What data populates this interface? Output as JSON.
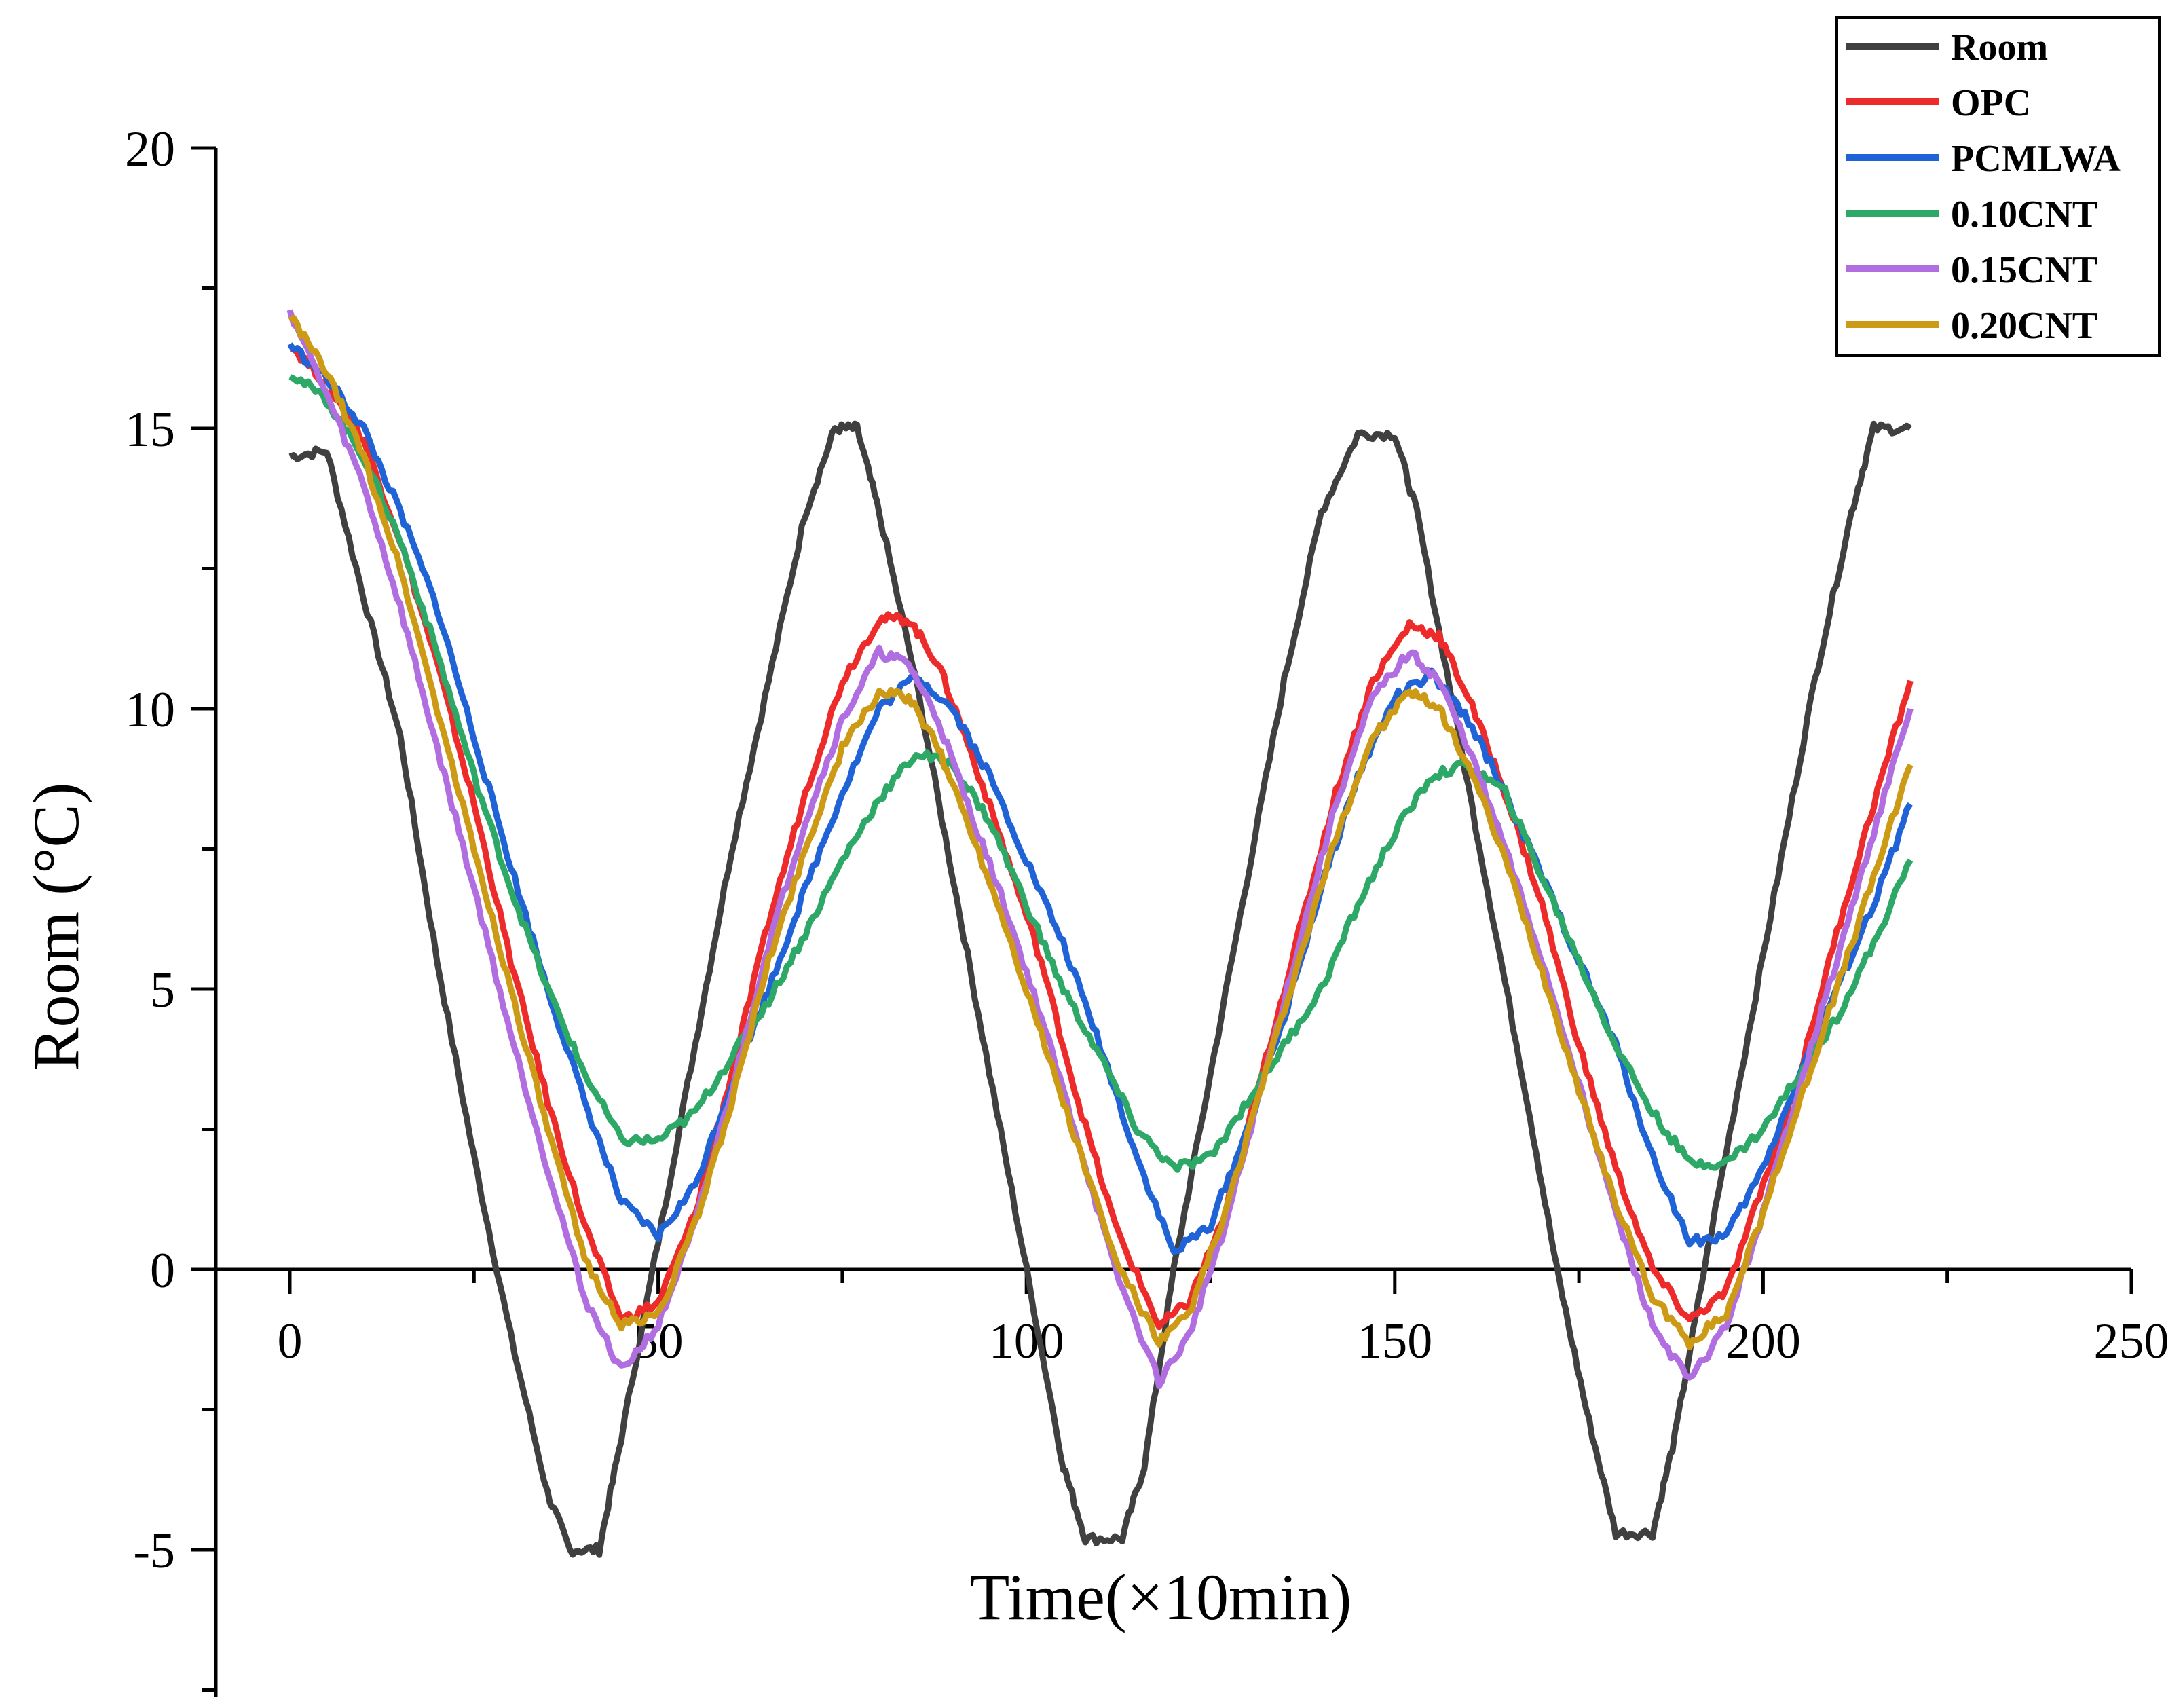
{
  "chart_data": {
    "type": "line",
    "title": "",
    "xlabel": "Time(×10min)",
    "ylabel": "Room (°C)",
    "xlim": [
      -10,
      250
    ],
    "ylim": [
      -7.5,
      20
    ],
    "x_ticks": [
      0,
      50,
      100,
      150,
      200,
      250
    ],
    "y_ticks": [
      -5,
      0,
      5,
      10,
      15,
      20
    ],
    "legend_position": "top-right",
    "grid": false,
    "series": [
      {
        "name": "Room",
        "color": "#404040",
        "points": [
          [
            0,
            14.5
          ],
          [
            5,
            14.6
          ],
          [
            10,
            12.0
          ],
          [
            15,
            9.5
          ],
          [
            20,
            5.5
          ],
          [
            25,
            2.0
          ],
          [
            30,
            -1.2
          ],
          [
            35,
            -4.0
          ],
          [
            38,
            -5.0
          ],
          [
            42,
            -5.0
          ],
          [
            45,
            -3.0
          ],
          [
            50,
            0.5
          ],
          [
            55,
            4.0
          ],
          [
            60,
            7.5
          ],
          [
            65,
            10.5
          ],
          [
            70,
            13.5
          ],
          [
            74,
            15.0
          ],
          [
            77,
            15.0
          ],
          [
            80,
            13.5
          ],
          [
            85,
            10.5
          ],
          [
            90,
            7.0
          ],
          [
            95,
            3.5
          ],
          [
            100,
            0.0
          ],
          [
            105,
            -3.5
          ],
          [
            108,
            -4.8
          ],
          [
            113,
            -4.8
          ],
          [
            116,
            -3.5
          ],
          [
            120,
            0.0
          ],
          [
            125,
            3.5
          ],
          [
            130,
            7.0
          ],
          [
            135,
            10.5
          ],
          [
            140,
            13.5
          ],
          [
            145,
            14.9
          ],
          [
            150,
            14.9
          ],
          [
            153,
            13.5
          ],
          [
            158,
            10.0
          ],
          [
            163,
            6.5
          ],
          [
            168,
            3.0
          ],
          [
            172,
            0.0
          ],
          [
            176,
            -2.5
          ],
          [
            180,
            -4.7
          ],
          [
            185,
            -4.7
          ],
          [
            188,
            -3.0
          ],
          [
            192,
            0.0
          ],
          [
            197,
            3.5
          ],
          [
            202,
            7.0
          ],
          [
            207,
            10.5
          ],
          [
            212,
            13.5
          ],
          [
            215,
            15.0
          ],
          [
            220,
            15.0
          ]
        ]
      },
      {
        "name": "OPC",
        "color": "#ee2b2b",
        "points": [
          [
            0,
            16.5
          ],
          [
            5,
            15.8
          ],
          [
            10,
            14.8
          ],
          [
            15,
            13.0
          ],
          [
            20,
            10.8
          ],
          [
            25,
            8.3
          ],
          [
            30,
            5.5
          ],
          [
            35,
            3.0
          ],
          [
            40,
            0.8
          ],
          [
            45,
            -0.9
          ],
          [
            50,
            -0.6
          ],
          [
            55,
            1.0
          ],
          [
            60,
            3.5
          ],
          [
            65,
            6.2
          ],
          [
            70,
            8.5
          ],
          [
            75,
            10.5
          ],
          [
            80,
            11.6
          ],
          [
            84,
            11.6
          ],
          [
            88,
            10.8
          ],
          [
            92,
            9.4
          ],
          [
            97,
            7.5
          ],
          [
            102,
            5.5
          ],
          [
            107,
            3.0
          ],
          [
            112,
            0.8
          ],
          [
            118,
            -1.0
          ],
          [
            122,
            -0.6
          ],
          [
            127,
            1.0
          ],
          [
            132,
            3.5
          ],
          [
            137,
            6.0
          ],
          [
            142,
            8.5
          ],
          [
            147,
            10.5
          ],
          [
            152,
            11.5
          ],
          [
            156,
            11.3
          ],
          [
            160,
            10.2
          ],
          [
            165,
            8.5
          ],
          [
            170,
            6.5
          ],
          [
            175,
            4.0
          ],
          [
            180,
            1.8
          ],
          [
            185,
            0.0
          ],
          [
            190,
            -0.9
          ],
          [
            195,
            -0.4
          ],
          [
            200,
            1.5
          ],
          [
            205,
            3.5
          ],
          [
            210,
            6.0
          ],
          [
            215,
            8.3
          ],
          [
            220,
            10.5
          ]
        ]
      },
      {
        "name": "PCMLWA",
        "color": "#1f63d6",
        "points": [
          [
            0,
            16.5
          ],
          [
            5,
            15.9
          ],
          [
            10,
            15.0
          ],
          [
            15,
            13.5
          ],
          [
            20,
            11.8
          ],
          [
            25,
            9.5
          ],
          [
            30,
            7.2
          ],
          [
            35,
            5.0
          ],
          [
            40,
            3.0
          ],
          [
            45,
            1.2
          ],
          [
            50,
            0.6
          ],
          [
            55,
            1.5
          ],
          [
            60,
            3.3
          ],
          [
            65,
            5.0
          ],
          [
            70,
            6.8
          ],
          [
            75,
            8.5
          ],
          [
            80,
            10.0
          ],
          [
            85,
            10.6
          ],
          [
            90,
            10.0
          ],
          [
            95,
            8.8
          ],
          [
            100,
            7.3
          ],
          [
            105,
            5.8
          ],
          [
            110,
            4.0
          ],
          [
            115,
            2.0
          ],
          [
            120,
            0.3
          ],
          [
            125,
            0.8
          ],
          [
            130,
            2.5
          ],
          [
            135,
            4.5
          ],
          [
            140,
            6.8
          ],
          [
            145,
            8.8
          ],
          [
            150,
            10.2
          ],
          [
            155,
            10.6
          ],
          [
            160,
            9.8
          ],
          [
            165,
            8.5
          ],
          [
            170,
            7.0
          ],
          [
            175,
            5.5
          ],
          [
            180,
            4.0
          ],
          [
            185,
            2.0
          ],
          [
            190,
            0.5
          ],
          [
            195,
            0.6
          ],
          [
            200,
            1.8
          ],
          [
            205,
            3.5
          ],
          [
            210,
            5.0
          ],
          [
            215,
            6.5
          ],
          [
            220,
            8.3
          ]
        ]
      },
      {
        "name": "0.10CNT",
        "color": "#2ea866",
        "points": [
          [
            0,
            16.0
          ],
          [
            5,
            15.5
          ],
          [
            10,
            14.5
          ],
          [
            15,
            13.0
          ],
          [
            20,
            11.0
          ],
          [
            25,
            8.8
          ],
          [
            30,
            6.8
          ],
          [
            35,
            5.0
          ],
          [
            40,
            3.5
          ],
          [
            45,
            2.3
          ],
          [
            50,
            2.3
          ],
          [
            55,
            2.8
          ],
          [
            60,
            3.8
          ],
          [
            65,
            4.8
          ],
          [
            70,
            6.0
          ],
          [
            75,
            7.3
          ],
          [
            80,
            8.4
          ],
          [
            85,
            9.2
          ],
          [
            90,
            9.0
          ],
          [
            95,
            8.0
          ],
          [
            100,
            6.5
          ],
          [
            105,
            5.0
          ],
          [
            110,
            3.8
          ],
          [
            115,
            2.5
          ],
          [
            120,
            1.8
          ],
          [
            125,
            2.0
          ],
          [
            130,
            3.0
          ],
          [
            135,
            4.0
          ],
          [
            140,
            5.0
          ],
          [
            145,
            6.5
          ],
          [
            150,
            7.8
          ],
          [
            155,
            8.8
          ],
          [
            160,
            9.0
          ],
          [
            165,
            8.5
          ],
          [
            170,
            7.0
          ],
          [
            175,
            5.5
          ],
          [
            180,
            4.0
          ],
          [
            185,
            2.8
          ],
          [
            190,
            1.9
          ],
          [
            195,
            1.9
          ],
          [
            200,
            2.5
          ],
          [
            205,
            3.5
          ],
          [
            210,
            4.5
          ],
          [
            215,
            5.8
          ],
          [
            220,
            7.3
          ]
        ]
      },
      {
        "name": "0.15CNT",
        "color": "#b06ee0",
        "points": [
          [
            0,
            17.1
          ],
          [
            5,
            15.6
          ],
          [
            10,
            14.0
          ],
          [
            15,
            11.8
          ],
          [
            20,
            9.3
          ],
          [
            25,
            6.8
          ],
          [
            30,
            4.2
          ],
          [
            35,
            1.8
          ],
          [
            40,
            -0.5
          ],
          [
            45,
            -1.8
          ],
          [
            50,
            -1.0
          ],
          [
            55,
            0.8
          ],
          [
            60,
            3.2
          ],
          [
            65,
            5.8
          ],
          [
            70,
            8.0
          ],
          [
            75,
            9.8
          ],
          [
            80,
            11.0
          ],
          [
            84,
            10.8
          ],
          [
            88,
            9.8
          ],
          [
            92,
            8.3
          ],
          [
            97,
            6.5
          ],
          [
            102,
            4.5
          ],
          [
            107,
            2.3
          ],
          [
            112,
            0.0
          ],
          [
            118,
            -2.0
          ],
          [
            122,
            -1.2
          ],
          [
            127,
            0.8
          ],
          [
            132,
            3.3
          ],
          [
            137,
            5.8
          ],
          [
            142,
            8.3
          ],
          [
            147,
            10.2
          ],
          [
            152,
            11.0
          ],
          [
            156,
            10.5
          ],
          [
            160,
            9.3
          ],
          [
            165,
            7.5
          ],
          [
            170,
            5.5
          ],
          [
            175,
            3.3
          ],
          [
            180,
            1.0
          ],
          [
            185,
            -1.0
          ],
          [
            190,
            -2.0
          ],
          [
            195,
            -1.0
          ],
          [
            200,
            1.0
          ],
          [
            205,
            3.3
          ],
          [
            210,
            5.5
          ],
          [
            215,
            7.8
          ],
          [
            220,
            10.0
          ]
        ]
      },
      {
        "name": "0.20CNT",
        "color": "#cc9a14",
        "points": [
          [
            0,
            17.0
          ],
          [
            5,
            16.0
          ],
          [
            10,
            14.5
          ],
          [
            15,
            12.5
          ],
          [
            20,
            10.0
          ],
          [
            25,
            7.5
          ],
          [
            30,
            5.0
          ],
          [
            35,
            2.5
          ],
          [
            40,
            0.2
          ],
          [
            45,
            -1.0
          ],
          [
            50,
            -0.8
          ],
          [
            55,
            0.8
          ],
          [
            60,
            3.0
          ],
          [
            65,
            5.5
          ],
          [
            70,
            7.5
          ],
          [
            75,
            9.3
          ],
          [
            80,
            10.3
          ],
          [
            84,
            10.2
          ],
          [
            88,
            9.3
          ],
          [
            92,
            8.0
          ],
          [
            97,
            6.2
          ],
          [
            102,
            4.2
          ],
          [
            107,
            2.2
          ],
          [
            112,
            0.2
          ],
          [
            118,
            -1.3
          ],
          [
            122,
            -0.8
          ],
          [
            127,
            1.0
          ],
          [
            132,
            3.3
          ],
          [
            137,
            5.5
          ],
          [
            142,
            7.7
          ],
          [
            147,
            9.5
          ],
          [
            152,
            10.3
          ],
          [
            156,
            10.0
          ],
          [
            160,
            9.0
          ],
          [
            165,
            7.3
          ],
          [
            170,
            5.3
          ],
          [
            175,
            3.2
          ],
          [
            180,
            1.2
          ],
          [
            185,
            -0.5
          ],
          [
            190,
            -1.3
          ],
          [
            195,
            -0.8
          ],
          [
            200,
            1.0
          ],
          [
            205,
            3.0
          ],
          [
            210,
            5.0
          ],
          [
            215,
            7.0
          ],
          [
            220,
            9.0
          ]
        ]
      }
    ]
  }
}
